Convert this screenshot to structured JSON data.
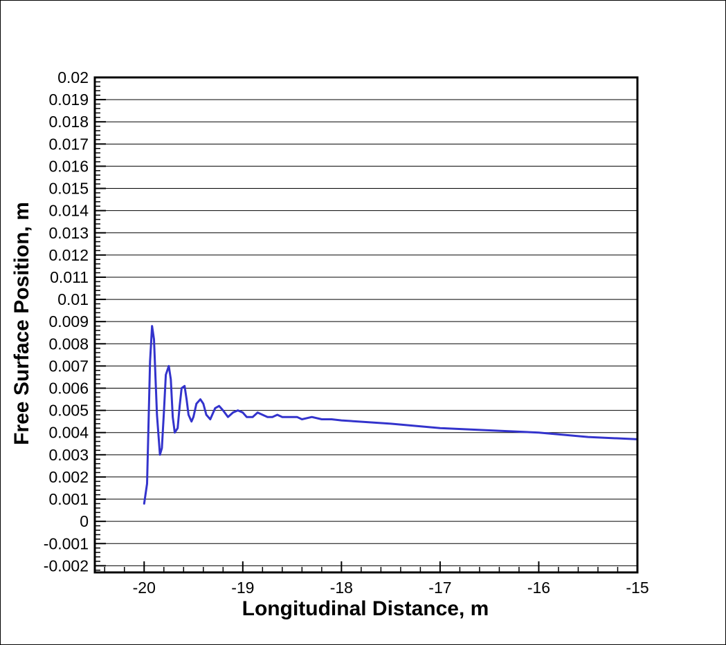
{
  "chart_data": {
    "type": "line",
    "xlabel": "Longitudinal Distance, m",
    "ylabel": "Free Surface Position, m",
    "xlim": [
      -20.5,
      -15
    ],
    "ylim": [
      -0.0023,
      0.02
    ],
    "x_ticks": [
      -20,
      -19,
      -18,
      -17,
      -16,
      -15
    ],
    "x_tick_labels": [
      "-20",
      "-19",
      "-18",
      "-17",
      "-16",
      "-15"
    ],
    "y_ticks": [
      0.02,
      0.019,
      0.018,
      0.017,
      0.016,
      0.015,
      0.014,
      0.013,
      0.012,
      0.011,
      0.01,
      0.009,
      0.008,
      0.007,
      0.006,
      0.005,
      0.004,
      0.003,
      0.002,
      0.001,
      0,
      -0.001,
      -0.002
    ],
    "y_tick_labels": [
      "0.02",
      "0.019",
      "0.018",
      "0.017",
      "0.016",
      "0.015",
      "0.014",
      "0.013",
      "0.012",
      "0.011",
      "0.01",
      "0.009",
      "0.008",
      "0.007",
      "0.006",
      "0.005",
      "0.004",
      "0.003",
      "0.002",
      "0.001",
      "0",
      "-0.001",
      "-0.002"
    ],
    "grid": "horizontal",
    "line_color": "#3333cc",
    "series": [
      {
        "x": [
          -20.0,
          -19.97,
          -19.94,
          -19.92,
          -19.9,
          -19.87,
          -19.84,
          -19.82,
          -19.8,
          -19.78,
          -19.75,
          -19.73,
          -19.71,
          -19.69,
          -19.66,
          -19.64,
          -19.62,
          -19.59,
          -19.57,
          -19.55,
          -19.52,
          -19.5,
          -19.47,
          -19.43,
          -19.4,
          -19.37,
          -19.33,
          -19.28,
          -19.24,
          -19.2,
          -19.15,
          -19.1,
          -19.05,
          -19.0,
          -18.96,
          -18.9,
          -18.85,
          -18.8,
          -18.75,
          -18.7,
          -18.65,
          -18.6,
          -18.55,
          -18.5,
          -18.45,
          -18.4,
          -18.3,
          -18.2,
          -18.1,
          -18.0,
          -17.5,
          -17.0,
          -16.5,
          -16.0,
          -15.5,
          -15.0
        ],
        "y": [
          0.0008,
          0.0017,
          0.0072,
          0.0088,
          0.0082,
          0.0048,
          0.003,
          0.0033,
          0.0049,
          0.0066,
          0.007,
          0.0064,
          0.0047,
          0.004,
          0.0042,
          0.0052,
          0.006,
          0.0061,
          0.0055,
          0.0048,
          0.0045,
          0.0047,
          0.0053,
          0.0055,
          0.0053,
          0.0048,
          0.0046,
          0.0051,
          0.0052,
          0.005,
          0.0047,
          0.0049,
          0.005,
          0.0049,
          0.0047,
          0.0047,
          0.0049,
          0.0048,
          0.0047,
          0.0047,
          0.0048,
          0.0047,
          0.0047,
          0.0047,
          0.0047,
          0.0046,
          0.0047,
          0.0046,
          0.0046,
          0.00455,
          0.0044,
          0.0042,
          0.0041,
          0.004,
          0.0038,
          0.0037
        ]
      }
    ]
  }
}
